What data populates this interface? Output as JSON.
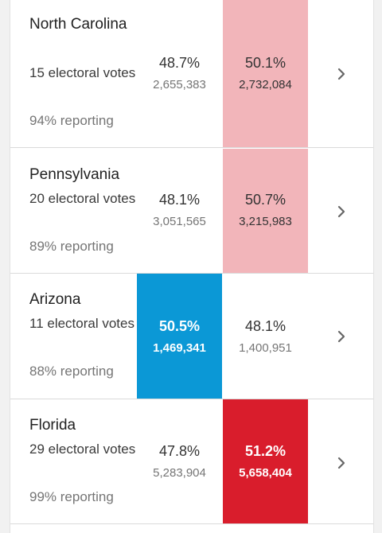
{
  "colors": {
    "rep_light": "#f2b5ba",
    "rep_strong": "#d91d2c",
    "dem_strong": "#0b98d6"
  },
  "states": [
    {
      "name": "North Carolina",
      "electoral": "15 electoral votes",
      "reporting": "94% reporting",
      "dem_pct": "48.7%",
      "dem_votes": "2,655,383",
      "rep_pct": "50.1%",
      "rep_votes": "2,732,084",
      "leader": "rep",
      "icon": "chevron-right-icon"
    },
    {
      "name": "Pennsylvania",
      "electoral": "20 electoral votes",
      "reporting": "89% reporting",
      "dem_pct": "48.1%",
      "dem_votes": "3,051,565",
      "rep_pct": "50.7%",
      "rep_votes": "3,215,983",
      "leader": "rep",
      "icon": "chevron-right-icon"
    },
    {
      "name": "Arizona",
      "electoral": "11 electoral votes",
      "reporting": "88% reporting",
      "dem_pct": "50.5%",
      "dem_votes": "1,469,341",
      "rep_pct": "48.1%",
      "rep_votes": "1,400,951",
      "leader": "dem",
      "icon": "chevron-right-icon"
    },
    {
      "name": "Florida",
      "electoral": "29 electoral votes",
      "reporting": "99% reporting",
      "dem_pct": "47.8%",
      "dem_votes": "5,283,904",
      "rep_pct": "51.2%",
      "rep_votes": "5,658,404",
      "leader": "rep",
      "icon": "chevron-right-icon"
    }
  ]
}
